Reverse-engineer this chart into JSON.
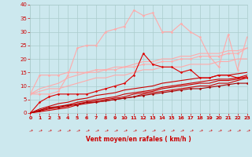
{
  "background_color": "#cce8ee",
  "grid_color": "#aacccc",
  "xlabel": "Vent moyen/en rafales ( km/h )",
  "xlabel_color": "#cc0000",
  "tick_color": "#cc0000",
  "ylim": [
    0,
    40
  ],
  "xlim": [
    0,
    23
  ],
  "yticks": [
    0,
    5,
    10,
    15,
    20,
    25,
    30,
    35,
    40
  ],
  "xticks": [
    0,
    1,
    2,
    3,
    4,
    5,
    6,
    7,
    8,
    9,
    10,
    11,
    12,
    13,
    14,
    15,
    16,
    17,
    18,
    19,
    20,
    21,
    22,
    23
  ],
  "series": [
    {
      "x": [
        0,
        1,
        2,
        3,
        4,
        5,
        6,
        7,
        8,
        9,
        10,
        11,
        12,
        13,
        14,
        15,
        16,
        17,
        18,
        19,
        20,
        21,
        22,
        23
      ],
      "y": [
        7,
        7,
        7,
        8,
        14,
        24,
        25,
        25,
        30,
        31,
        32,
        38,
        36,
        37,
        30,
        30,
        33,
        30,
        28,
        21,
        17,
        29,
        16,
        28
      ],
      "color": "#ffaaaa",
      "linewidth": 0.8,
      "marker": "D",
      "markersize": 1.5,
      "zorder": 2
    },
    {
      "x": [
        0,
        1,
        2,
        3,
        4,
        5,
        6,
        7,
        8,
        9,
        10,
        11,
        12,
        13,
        14,
        15,
        16,
        17,
        18,
        19,
        20,
        21,
        22,
        23
      ],
      "y": [
        7,
        9,
        10,
        11,
        13,
        14,
        15,
        15,
        16,
        17,
        17,
        18,
        19,
        19,
        20,
        20,
        21,
        21,
        22,
        22,
        22,
        23,
        23,
        24
      ],
      "color": "#ffaaaa",
      "linewidth": 0.8,
      "marker": null,
      "markersize": 0,
      "zorder": 2
    },
    {
      "x": [
        0,
        1,
        2,
        3,
        4,
        5,
        6,
        7,
        8,
        9,
        10,
        11,
        12,
        13,
        14,
        15,
        16,
        17,
        18,
        19,
        20,
        21,
        22,
        23
      ],
      "y": [
        7,
        8,
        9,
        9,
        10,
        11,
        12,
        13,
        13,
        14,
        14,
        15,
        16,
        16,
        17,
        17,
        17,
        18,
        18,
        18,
        19,
        19,
        20,
        20
      ],
      "color": "#ffaaaa",
      "linewidth": 0.8,
      "marker": null,
      "markersize": 0,
      "zorder": 2
    },
    {
      "x": [
        0,
        1,
        2,
        3,
        4,
        5,
        6,
        7,
        8,
        9,
        10,
        11,
        12,
        13,
        14,
        15,
        16,
        17,
        18,
        19,
        20,
        21,
        22,
        23
      ],
      "y": [
        7,
        14,
        14,
        14,
        15,
        15,
        15,
        16,
        16,
        16,
        17,
        17,
        18,
        18,
        19,
        19,
        20,
        20,
        21,
        21,
        21,
        22,
        22,
        24
      ],
      "color": "#ffaaaa",
      "linewidth": 0.8,
      "marker": "D",
      "markersize": 1.5,
      "zorder": 2
    },
    {
      "x": [
        0,
        1,
        2,
        3,
        4,
        5,
        6,
        7,
        8,
        9,
        10,
        11,
        12,
        13,
        14,
        15,
        16,
        17,
        18,
        19,
        20,
        21,
        22,
        23
      ],
      "y": [
        0,
        4,
        6,
        7,
        7,
        7,
        7,
        8,
        9,
        10,
        11,
        14,
        22,
        18,
        17,
        17,
        15,
        16,
        13,
        13,
        14,
        14,
        13,
        13
      ],
      "color": "#dd0000",
      "linewidth": 0.8,
      "marker": "D",
      "markersize": 1.5,
      "zorder": 5
    },
    {
      "x": [
        0,
        1,
        2,
        3,
        4,
        5,
        6,
        7,
        8,
        9,
        10,
        11,
        12,
        13,
        14,
        15,
        16,
        17,
        18,
        19,
        20,
        21,
        22,
        23
      ],
      "y": [
        0,
        0.5,
        1,
        1.5,
        2,
        3,
        3.5,
        4,
        4.5,
        5,
        5.5,
        6,
        7,
        7.5,
        8,
        8.5,
        9,
        9.5,
        10,
        10,
        11,
        11,
        12,
        13
      ],
      "color": "#cc0000",
      "linewidth": 0.8,
      "marker": null,
      "markersize": 0,
      "zorder": 3
    },
    {
      "x": [
        0,
        1,
        2,
        3,
        4,
        5,
        6,
        7,
        8,
        9,
        10,
        11,
        12,
        13,
        14,
        15,
        16,
        17,
        18,
        19,
        20,
        21,
        22,
        23
      ],
      "y": [
        0,
        0.8,
        1.5,
        2,
        2.5,
        3.5,
        4,
        4.5,
        5,
        5.5,
        6,
        7,
        7.5,
        8,
        9,
        9.5,
        10,
        10.5,
        11,
        11,
        12,
        12,
        12.5,
        13.5
      ],
      "color": "#cc0000",
      "linewidth": 0.8,
      "marker": null,
      "markersize": 0,
      "zorder": 3
    },
    {
      "x": [
        0,
        1,
        2,
        3,
        4,
        5,
        6,
        7,
        8,
        9,
        10,
        11,
        12,
        13,
        14,
        15,
        16,
        17,
        18,
        19,
        20,
        21,
        22,
        23
      ],
      "y": [
        0,
        1,
        2,
        2.5,
        3,
        4,
        4.5,
        5,
        5.5,
        6,
        7,
        7.5,
        8,
        8.5,
        9.5,
        10,
        10.5,
        11,
        11.5,
        12,
        12.5,
        12.5,
        13,
        14
      ],
      "color": "#cc0000",
      "linewidth": 0.8,
      "marker": null,
      "markersize": 0,
      "zorder": 3
    },
    {
      "x": [
        0,
        1,
        2,
        3,
        4,
        5,
        6,
        7,
        8,
        9,
        10,
        11,
        12,
        13,
        14,
        15,
        16,
        17,
        18,
        19,
        20,
        21,
        22,
        23
      ],
      "y": [
        0,
        1.5,
        2.5,
        3.5,
        4,
        5,
        5.5,
        6.5,
        7,
        7.5,
        8.5,
        9,
        9.5,
        10,
        11,
        11.5,
        12,
        12.5,
        13,
        13,
        14,
        14,
        14.5,
        15
      ],
      "color": "#cc0000",
      "linewidth": 0.8,
      "marker": null,
      "markersize": 0,
      "zorder": 3
    },
    {
      "x": [
        0,
        1,
        2,
        3,
        4,
        5,
        6,
        7,
        8,
        9,
        10,
        11,
        12,
        13,
        14,
        15,
        16,
        17,
        18,
        19,
        20,
        21,
        22,
        23
      ],
      "y": [
        0,
        1,
        2,
        2,
        3,
        3,
        4,
        4,
        4.5,
        5,
        5.5,
        6,
        6.5,
        7,
        7.5,
        8,
        8.5,
        9,
        9,
        9.5,
        10,
        10.5,
        11,
        11
      ],
      "color": "#aa0000",
      "linewidth": 0.8,
      "marker": "D",
      "markersize": 1.5,
      "zorder": 4
    }
  ],
  "wind_arrow_color": "#cc0000"
}
